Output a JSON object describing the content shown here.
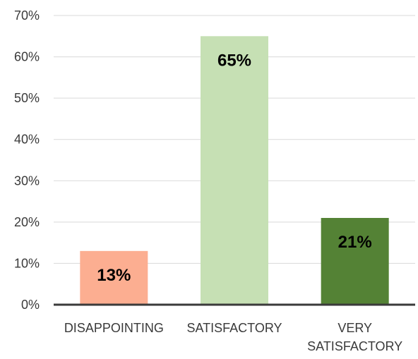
{
  "chart_data": {
    "type": "bar",
    "categories": [
      "DISAPPOINTING",
      "SATISFACTORY",
      "VERY SATISFACTORY"
    ],
    "values": [
      13,
      65,
      21
    ],
    "data_labels": [
      "13%",
      "65%",
      "21%"
    ],
    "bar_colors": [
      "#FCAE91",
      "#C6E0B4",
      "#548235"
    ],
    "ylim": [
      0,
      70
    ],
    "yticks": [
      0,
      10,
      20,
      30,
      40,
      50,
      60,
      70
    ],
    "ytick_labels": [
      "0%",
      "10%",
      "20%",
      "30%",
      "40%",
      "50%",
      "60%",
      "70%"
    ],
    "grid": true,
    "legend": "none",
    "title": "",
    "xlabel": "",
    "ylabel": ""
  }
}
